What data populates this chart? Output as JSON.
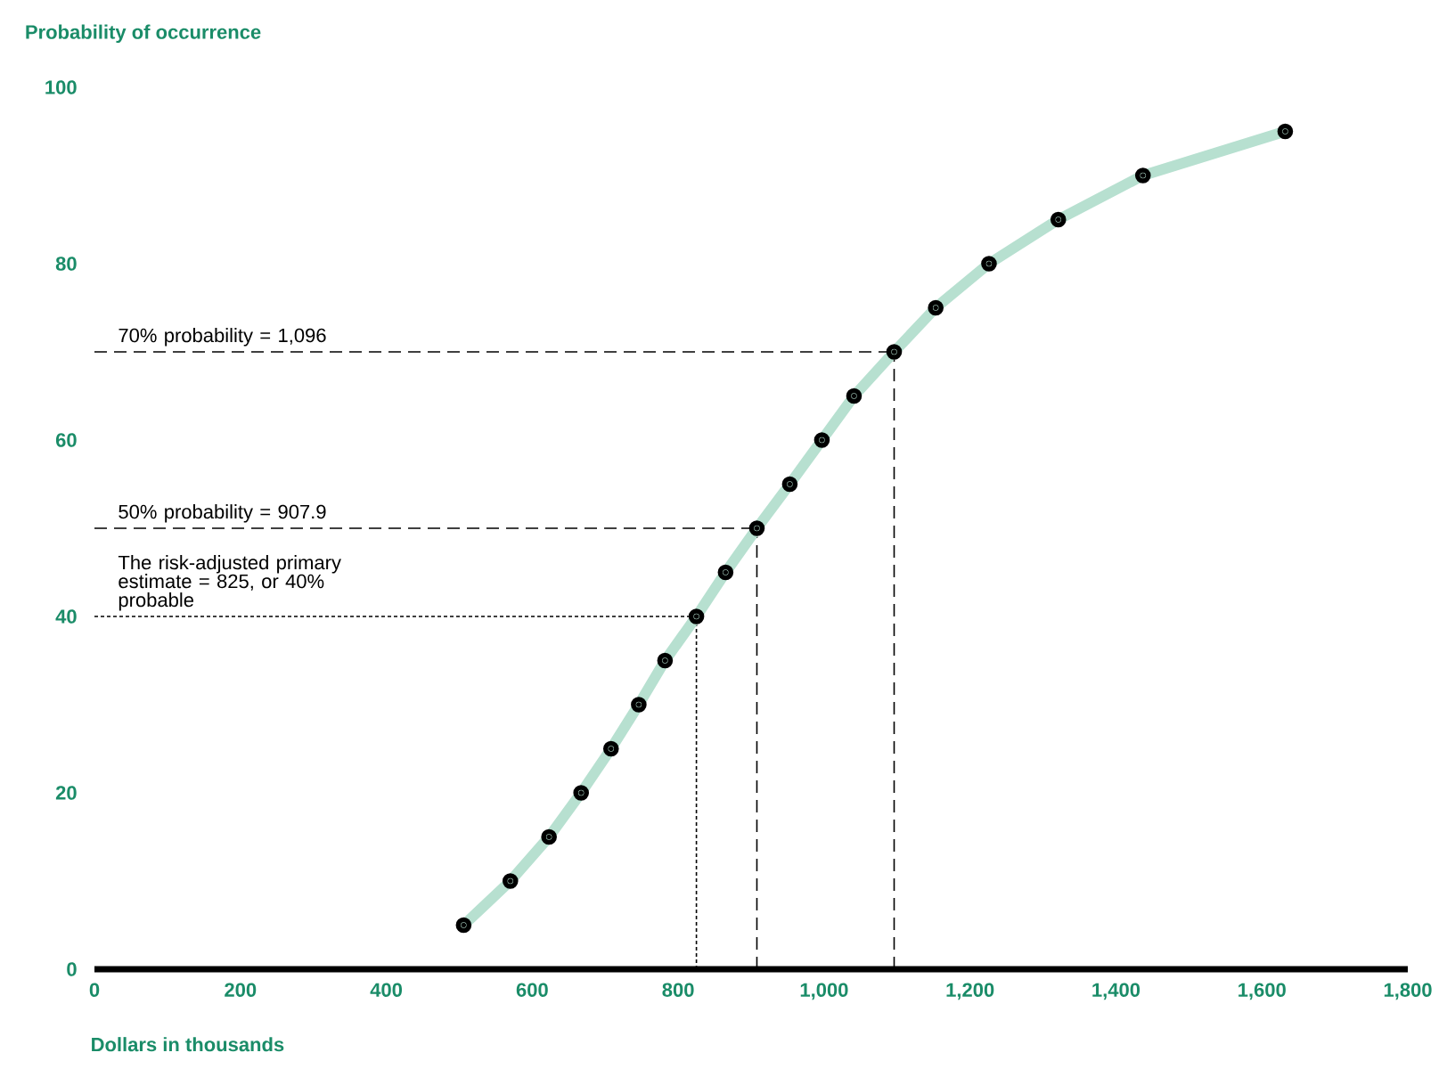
{
  "chart_data": {
    "type": "line",
    "xlabel": "Dollars in thousands",
    "ylabel": "Probability of occurrence",
    "x": [
      506,
      570,
      623,
      667,
      708,
      746,
      782,
      825,
      865,
      907.9,
      953,
      997,
      1041,
      1096,
      1153,
      1226,
      1321,
      1437,
      1632
    ],
    "series": [
      {
        "color": "#b7e0d0",
        "values": [
          5,
          10,
          15,
          20,
          25,
          30,
          35,
          40,
          45,
          50,
          55,
          60,
          65,
          70,
          75,
          80,
          85,
          90,
          95
        ]
      }
    ],
    "marker": "circle",
    "xlim": [
      0,
      1800
    ],
    "ylim": [
      0,
      100
    ],
    "xticks": [
      0,
      200,
      400,
      600,
      800,
      {
        "value": 1000,
        "label": "1,000"
      },
      {
        "value": 1200,
        "label": "1,200"
      },
      {
        "value": 1400,
        "label": "1,400"
      },
      {
        "value": 1600,
        "label": "1,600"
      },
      {
        "value": 1800,
        "label": "1,800"
      }
    ],
    "yticks": [
      0,
      20,
      40,
      60,
      80,
      100
    ],
    "ref_lines": [
      {
        "axis": "y",
        "value": 70,
        "line_style": "dashed"
      },
      {
        "axis": "x",
        "value": 1096,
        "line_style": "dashed"
      },
      {
        "axis": "y",
        "value": 50,
        "line_style": "dashed"
      },
      {
        "axis": "x",
        "value": 907.9,
        "line_style": "dashed"
      },
      {
        "axis": "y",
        "value": 40,
        "line_style": "dotted"
      },
      {
        "axis": "x",
        "value": 825,
        "line_style": "dotted"
      }
    ],
    "annotations": [
      "70% probability = 1,096",
      "50% probability = 907.9",
      "The risk-adjusted primary estimate = 825, or 40% probable"
    ]
  }
}
